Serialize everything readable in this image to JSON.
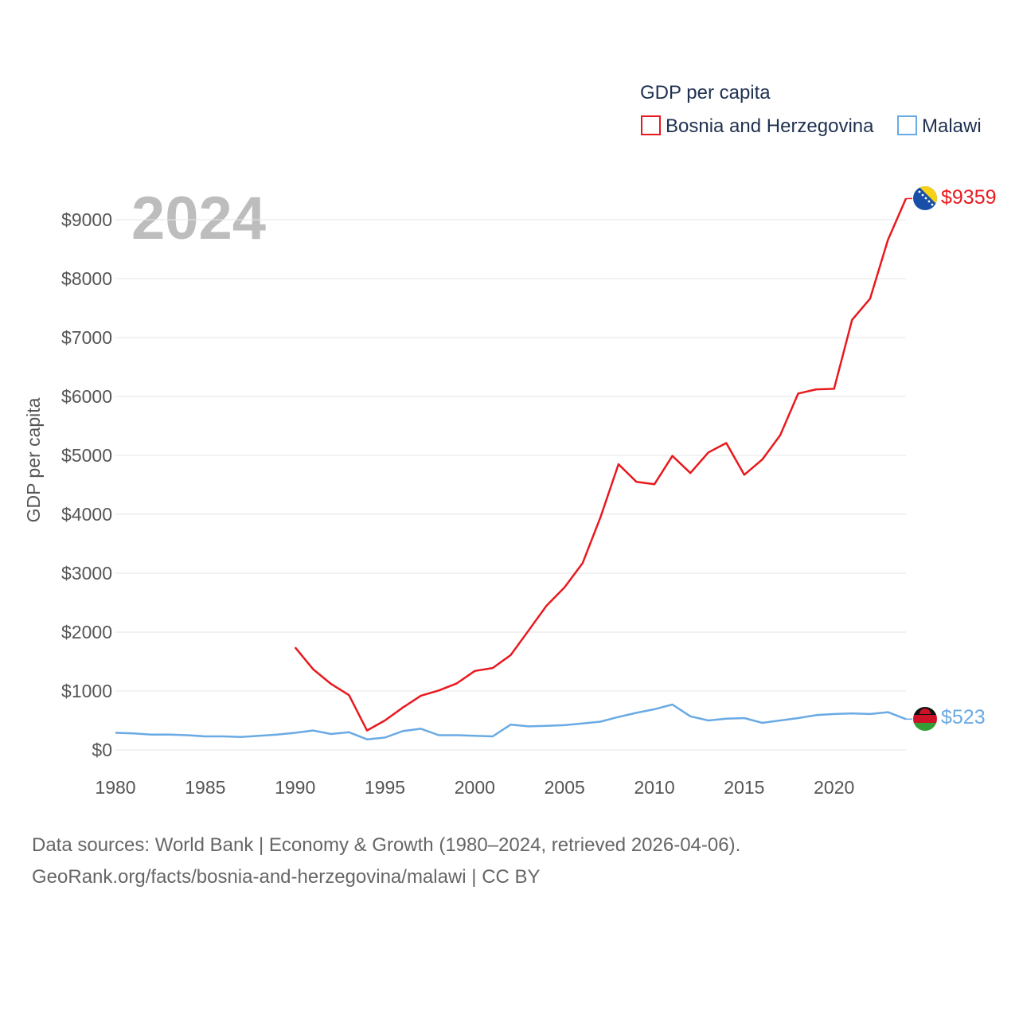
{
  "chart_data": {
    "type": "line",
    "title": "GDP per capita",
    "ylabel": "GDP per capita",
    "xlabel": "",
    "current_year_label": "2024",
    "xlim": [
      1980,
      2024
    ],
    "ylim": [
      0,
      9000
    ],
    "x_ticks": [
      1980,
      1985,
      1990,
      1995,
      2000,
      2005,
      2010,
      2015,
      2020
    ],
    "y_ticks": [
      0,
      1000,
      2000,
      3000,
      4000,
      5000,
      6000,
      7000,
      8000,
      9000
    ],
    "y_tick_labels": [
      "$0",
      "$1000",
      "$2000",
      "$3000",
      "$4000",
      "$5000",
      "$6000",
      "$7000",
      "$8000",
      "$9000"
    ],
    "x_tick_labels": [
      "1980",
      "1985",
      "1990",
      "1995",
      "2000",
      "2005",
      "2010",
      "2015",
      "2020"
    ],
    "legend_position": "top-right",
    "series": [
      {
        "name": "Bosnia and Herzegovina",
        "color": "#e8191e",
        "end_label": "$9359",
        "flag_icon": "bosnia-flag-icon",
        "x": [
          1990,
          1991,
          1992,
          1993,
          1994,
          1995,
          1996,
          1997,
          1998,
          1999,
          2000,
          2001,
          2002,
          2003,
          2004,
          2005,
          2006,
          2007,
          2008,
          2009,
          2010,
          2011,
          2012,
          2013,
          2014,
          2015,
          2016,
          2017,
          2018,
          2019,
          2020,
          2021,
          2022,
          2023,
          2024
        ],
        "values": [
          1740,
          1370,
          1120,
          930,
          330,
          500,
          720,
          920,
          1010,
          1130,
          1340,
          1390,
          1610,
          2030,
          2450,
          2760,
          3170,
          3950,
          4850,
          4550,
          4510,
          4990,
          4700,
          5050,
          5210,
          4670,
          4930,
          5340,
          6050,
          6120,
          6130,
          7300,
          7660,
          8660,
          9359
        ]
      },
      {
        "name": "Malawi",
        "color": "#6aaae4",
        "end_label": "$523",
        "flag_icon": "malawi-flag-icon",
        "x": [
          1980,
          1981,
          1982,
          1983,
          1984,
          1985,
          1986,
          1987,
          1988,
          1989,
          1990,
          1991,
          1992,
          1993,
          1994,
          1995,
          1996,
          1997,
          1998,
          1999,
          2000,
          2001,
          2002,
          2003,
          2004,
          2005,
          2006,
          2007,
          2008,
          2009,
          2010,
          2011,
          2012,
          2013,
          2014,
          2015,
          2016,
          2017,
          2018,
          2019,
          2020,
          2021,
          2022,
          2023,
          2024
        ],
        "values": [
          290,
          280,
          260,
          260,
          250,
          230,
          230,
          220,
          240,
          260,
          290,
          330,
          270,
          300,
          180,
          210,
          320,
          360,
          250,
          250,
          240,
          230,
          430,
          400,
          410,
          420,
          450,
          480,
          560,
          630,
          690,
          770,
          570,
          500,
          530,
          540,
          460,
          500,
          540,
          590,
          610,
          620,
          610,
          640,
          523
        ]
      }
    ]
  },
  "footer": {
    "line1": "Data sources: World Bank | Economy & Growth (1980–2024, retrieved 2026-04-06).",
    "line2": "GeoRank.org/facts/bosnia-and-herzegovina/malawi | CC BY"
  }
}
